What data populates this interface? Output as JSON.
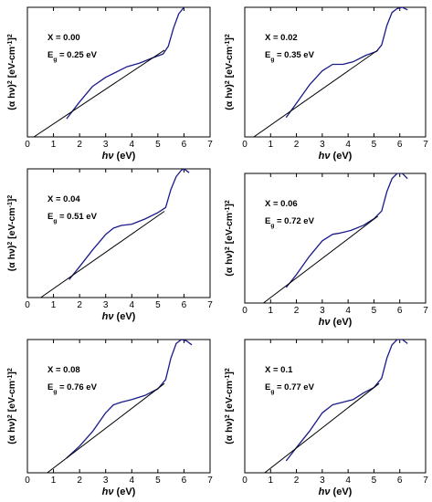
{
  "figure": {
    "x_axis_label_italic": "hν",
    "x_axis_label_unit": " (eV)",
    "y_axis_label_main": "(α  hν)",
    "y_axis_label_sup": "2",
    "y_axis_label_unit": " [eV-cm",
    "y_axis_label_unit_sup": "-1",
    "y_axis_label_close": "]",
    "y_axis_label_close_sup": "2"
  },
  "colors": {
    "data_curve": "#1a1a8a",
    "fit_line": "#000000",
    "axis": "#000000"
  },
  "chart_data": [
    {
      "type": "line",
      "x_label": "hν (eV)",
      "y_label": "(α hν)2 [eV-cm-1]2",
      "x_ticks": [
        0,
        1,
        2,
        3,
        4,
        5,
        6,
        7
      ],
      "xlim": [
        0,
        7
      ],
      "ylim": [
        0,
        1
      ],
      "y_ticks_shown": false,
      "annotation_x": "X = 0.00",
      "annotation_eg_prefix": "E",
      "annotation_eg_sub": "g",
      "annotation_eg_value": " = 0.25 eV",
      "series": [
        {
          "style": "curve",
          "x": [
            1.5,
            2.0,
            2.5,
            3.0,
            3.5,
            3.8,
            4.3,
            4.8,
            5.2,
            5.4,
            5.6,
            5.8,
            6.0,
            6.15,
            6.25
          ],
          "y": [
            0.14,
            0.27,
            0.39,
            0.46,
            0.51,
            0.54,
            0.57,
            0.61,
            0.64,
            0.7,
            0.84,
            0.95,
            1.0,
            1.02,
            1.01
          ]
        },
        {
          "style": "fit",
          "x": [
            0.25,
            5.25
          ],
          "y": [
            0.0,
            0.67
          ]
        }
      ]
    },
    {
      "type": "line",
      "x_label": "hν (eV)",
      "y_label": "(α hν)2 [eV-cm-1]2",
      "x_ticks": [
        0,
        1,
        2,
        3,
        4,
        5,
        6,
        7
      ],
      "xlim": [
        0,
        7
      ],
      "ylim": [
        0,
        1
      ],
      "y_ticks_shown": false,
      "annotation_x": "X = 0.02",
      "annotation_eg_prefix": "E",
      "annotation_eg_sub": "g",
      "annotation_eg_value": " = 0.35 eV",
      "series": [
        {
          "style": "curve",
          "x": [
            1.6,
            2.0,
            2.5,
            3.0,
            3.4,
            3.8,
            4.2,
            4.7,
            5.1,
            5.3,
            5.5,
            5.7,
            5.9,
            6.1,
            6.3
          ],
          "y": [
            0.15,
            0.26,
            0.4,
            0.51,
            0.56,
            0.56,
            0.58,
            0.63,
            0.66,
            0.71,
            0.86,
            0.96,
            0.99,
            1.0,
            0.98
          ]
        },
        {
          "style": "fit",
          "x": [
            0.35,
            5.15
          ],
          "y": [
            0.0,
            0.67
          ]
        }
      ]
    },
    {
      "type": "line",
      "x_label": "hν (eV)",
      "y_label": "(α hν)2 [eV-cm-1]2",
      "x_ticks": [
        0,
        1,
        2,
        3,
        4,
        5,
        6,
        7
      ],
      "xlim": [
        0,
        7
      ],
      "ylim": [
        0,
        1
      ],
      "y_ticks_shown": false,
      "annotation_x": "X = 0.04",
      "annotation_eg_prefix": "E",
      "annotation_eg_sub": "g",
      "annotation_eg_value": " = 0.51 eV",
      "series": [
        {
          "style": "curve",
          "x": [
            1.6,
            2.0,
            2.5,
            3.0,
            3.3,
            3.6,
            4.0,
            4.5,
            5.0,
            5.3,
            5.5,
            5.7,
            5.9,
            6.0,
            6.2
          ],
          "y": [
            0.14,
            0.24,
            0.37,
            0.49,
            0.54,
            0.56,
            0.57,
            0.61,
            0.66,
            0.7,
            0.84,
            0.94,
            0.99,
            1.0,
            0.97
          ]
        },
        {
          "style": "fit",
          "x": [
            0.51,
            5.25
          ],
          "y": [
            0.0,
            0.67
          ]
        }
      ]
    },
    {
      "type": "line",
      "x_label": "hν (eV)",
      "y_label": "(α hν)2 [eV-cm-1]2",
      "x_ticks": [
        0,
        1,
        2,
        3,
        4,
        5,
        6,
        7
      ],
      "xlim": [
        0,
        7
      ],
      "ylim": [
        0,
        1
      ],
      "y_ticks_shown": false,
      "annotation_x": "X = 0.06",
      "annotation_eg_prefix": "E",
      "annotation_eg_sub": "g",
      "annotation_eg_value": " = 0.72 eV",
      "series": [
        {
          "style": "curve",
          "x": [
            1.6,
            2.0,
            2.5,
            3.0,
            3.4,
            3.7,
            4.1,
            4.6,
            5.0,
            5.3,
            5.5,
            5.7,
            5.9,
            6.1,
            6.3
          ],
          "y": [
            0.12,
            0.22,
            0.36,
            0.48,
            0.53,
            0.54,
            0.56,
            0.6,
            0.65,
            0.71,
            0.86,
            0.96,
            1.0,
            1.0,
            0.96
          ]
        },
        {
          "style": "fit",
          "x": [
            0.72,
            5.15
          ],
          "y": [
            0.0,
            0.67
          ]
        }
      ]
    },
    {
      "type": "line",
      "x_label": "hν (eV)",
      "y_label": "(α hν)2 [eV-cm-1]2",
      "x_ticks": [
        0,
        1,
        2,
        3,
        4,
        5,
        6,
        7
      ],
      "xlim": [
        0,
        7
      ],
      "ylim": [
        0,
        1
      ],
      "y_ticks_shown": false,
      "annotation_x": "X = 0.08",
      "annotation_eg_prefix": "E",
      "annotation_eg_sub": "g",
      "annotation_eg_value": " = 0.76 eV",
      "series": [
        {
          "style": "curve",
          "x": [
            1.5,
            2.0,
            2.5,
            3.0,
            3.3,
            3.6,
            4.0,
            4.5,
            5.0,
            5.3,
            5.5,
            5.7,
            5.9,
            6.1,
            6.3
          ],
          "y": [
            0.11,
            0.2,
            0.31,
            0.45,
            0.51,
            0.53,
            0.55,
            0.58,
            0.63,
            0.7,
            0.86,
            0.97,
            1.0,
            0.99,
            0.96
          ]
        },
        {
          "style": "fit",
          "x": [
            0.76,
            5.25
          ],
          "y": [
            0.0,
            0.67
          ]
        }
      ]
    },
    {
      "type": "line",
      "x_label": "hν (eV)",
      "y_label": "(α hν)2 [eV-cm-1]2",
      "x_ticks": [
        0,
        1,
        2,
        3,
        4,
        5,
        6,
        7
      ],
      "xlim": [
        0,
        7
      ],
      "ylim": [
        0,
        1
      ],
      "y_ticks_shown": false,
      "annotation_x": "X = 0.1",
      "annotation_eg_prefix": "E",
      "annotation_eg_sub": "g",
      "annotation_eg_value": " = 0.77 eV",
      "series": [
        {
          "style": "curve",
          "x": [
            1.6,
            2.0,
            2.5,
            3.0,
            3.4,
            3.8,
            4.2,
            4.6,
            5.0,
            5.3,
            5.5,
            5.7,
            5.9,
            6.1,
            6.3
          ],
          "y": [
            0.09,
            0.19,
            0.31,
            0.45,
            0.51,
            0.53,
            0.55,
            0.6,
            0.64,
            0.71,
            0.86,
            0.96,
            1.0,
            1.0,
            0.97
          ]
        },
        {
          "style": "fit",
          "x": [
            0.77,
            5.2
          ],
          "y": [
            0.0,
            0.67
          ]
        }
      ]
    }
  ]
}
